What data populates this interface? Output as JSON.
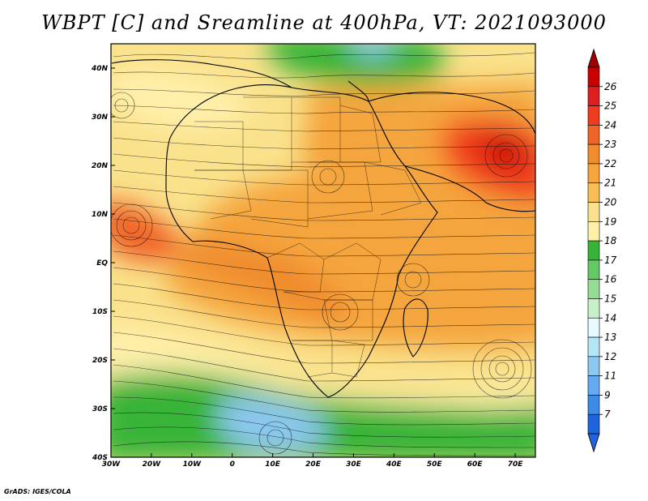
{
  "title": "WBPT [C] and Sreamline at 400hPa, VT: 2021093000",
  "credit": "GrADS: IGES/COLA",
  "map": {
    "field": "WBPT",
    "units": "C",
    "level": "400hPa",
    "valid_time": "2021093000",
    "lon_range": [
      -30,
      75
    ],
    "lat_range": [
      -40,
      45
    ],
    "lon_ticks": [
      {
        "value": -30,
        "label": "30W"
      },
      {
        "value": -20,
        "label": "20W"
      },
      {
        "value": -10,
        "label": "10W"
      },
      {
        "value": 0,
        "label": "0"
      },
      {
        "value": 10,
        "label": "10E"
      },
      {
        "value": 20,
        "label": "20E"
      },
      {
        "value": 30,
        "label": "30E"
      },
      {
        "value": 40,
        "label": "40E"
      },
      {
        "value": 50,
        "label": "50E"
      },
      {
        "value": 60,
        "label": "60E"
      },
      {
        "value": 70,
        "label": "70E"
      }
    ],
    "lat_ticks": [
      {
        "value": 40,
        "label": "40N"
      },
      {
        "value": 30,
        "label": "30N"
      },
      {
        "value": 20,
        "label": "20N"
      },
      {
        "value": 10,
        "label": "10N"
      },
      {
        "value": 0,
        "label": "EQ"
      },
      {
        "value": -10,
        "label": "10S"
      },
      {
        "value": -20,
        "label": "20S"
      },
      {
        "value": -30,
        "label": "30S"
      },
      {
        "value": -40,
        "label": "40S"
      }
    ]
  },
  "colorbar": {
    "labels": [
      "26",
      "25",
      "24",
      "23",
      "22",
      "21",
      "20",
      "19",
      "18",
      "17",
      "16",
      "15",
      "14",
      "13",
      "12",
      "11",
      "9",
      "7"
    ],
    "top_color": "#a00000",
    "bottom_color": "#1e64dc",
    "colors": [
      "#c80000",
      "#dc1e1e",
      "#f03c1e",
      "#f06428",
      "#f08c2d",
      "#f5a53c",
      "#f8be55",
      "#fae28c",
      "#fff0aa",
      "#37b437",
      "#64c864",
      "#96dc96",
      "#c8f0c8",
      "#e6faff",
      "#b4e6f5",
      "#8cc8f0",
      "#64aaf0",
      "#3c8ce6",
      "#1e64dc"
    ]
  }
}
